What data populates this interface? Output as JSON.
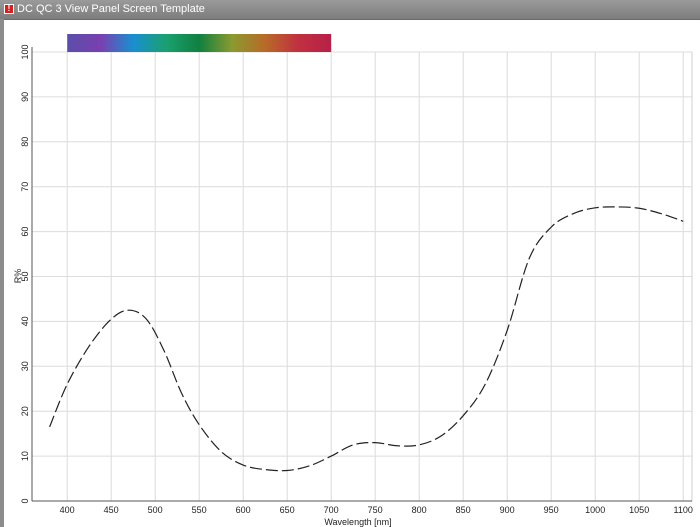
{
  "window": {
    "title": "DC QC 3 View Panel Screen Template"
  },
  "chart_data": {
    "type": "line",
    "title": "",
    "xlabel": "Wavelength [nm]",
    "ylabel": "R%",
    "xlim": [
      360,
      1110
    ],
    "ylim": [
      0,
      100
    ],
    "x_ticks": [
      400,
      450,
      500,
      550,
      600,
      650,
      700,
      750,
      800,
      850,
      900,
      950,
      1000,
      1050,
      1100
    ],
    "y_ticks": [
      0,
      10,
      20,
      30,
      40,
      50,
      60,
      70,
      80,
      90,
      100
    ],
    "grid": true,
    "spectrum_band": {
      "x_start": 400,
      "x_end": 700,
      "colors": [
        "#5a4fa8",
        "#7a3fb0",
        "#1a8fd0",
        "#1aa070",
        "#108040",
        "#8a9a30",
        "#b86a28",
        "#c03040",
        "#b82048"
      ]
    },
    "series": [
      {
        "name": "",
        "x": [
          380,
          400,
          425,
          450,
          470,
          490,
          510,
          530,
          550,
          575,
          600,
          625,
          650,
          675,
          700,
          725,
          750,
          775,
          800,
          825,
          850,
          875,
          900,
          925,
          950,
          975,
          1000,
          1025,
          1050,
          1075,
          1100
        ],
        "y": [
          16.5,
          26,
          34.5,
          40.5,
          42.5,
          40.5,
          33.5,
          24,
          17,
          11,
          8,
          7,
          6.8,
          7.8,
          10,
          12.5,
          13,
          12.3,
          12.5,
          14.5,
          19,
          26,
          38,
          54,
          61,
          64,
          65.3,
          65.5,
          65.2,
          64,
          62.3
        ]
      }
    ]
  }
}
